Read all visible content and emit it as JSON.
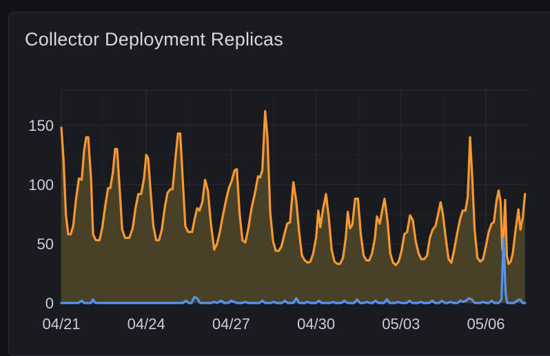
{
  "panel": {
    "title": "Collector Deployment Replicas"
  },
  "colors": {
    "background": "#181b1f",
    "grid": "#2a2d33",
    "orange_series": "#ff9830",
    "orange_fill": "#4a4428",
    "blue_series": "#5794f2"
  },
  "chart_data": {
    "type": "line",
    "title": "Collector Deployment Replicas",
    "xlabel": "",
    "ylabel": "",
    "ylim": [
      0,
      175
    ],
    "yticks": [
      0,
      50,
      100,
      150
    ],
    "x_ticks": [
      {
        "label": "04/21",
        "day": 0
      },
      {
        "label": "04/24",
        "day": 3
      },
      {
        "label": "04/27",
        "day": 6
      },
      {
        "label": "04/30",
        "day": 9
      },
      {
        "label": "05/03",
        "day": 12
      },
      {
        "label": "05/06",
        "day": 15
      }
    ],
    "x_range_days": [
      0,
      15.95
    ],
    "grid": true,
    "legend": "none",
    "series": [
      {
        "color": "#ff9830",
        "fill": true,
        "points": [
          [
            0.0,
            148
          ],
          [
            0.08,
            120
          ],
          [
            0.16,
            75
          ],
          [
            0.24,
            58
          ],
          [
            0.33,
            58
          ],
          [
            0.42,
            65
          ],
          [
            0.52,
            88
          ],
          [
            0.62,
            105
          ],
          [
            0.72,
            104
          ],
          [
            0.8,
            128
          ],
          [
            0.88,
            140
          ],
          [
            0.95,
            140
          ],
          [
            1.05,
            105
          ],
          [
            1.12,
            58
          ],
          [
            1.22,
            53
          ],
          [
            1.35,
            53
          ],
          [
            1.45,
            64
          ],
          [
            1.55,
            82
          ],
          [
            1.65,
            97
          ],
          [
            1.73,
            97
          ],
          [
            1.82,
            110
          ],
          [
            1.9,
            130
          ],
          [
            1.97,
            130
          ],
          [
            2.05,
            100
          ],
          [
            2.15,
            62
          ],
          [
            2.25,
            55
          ],
          [
            2.4,
            55
          ],
          [
            2.52,
            63
          ],
          [
            2.62,
            80
          ],
          [
            2.72,
            92
          ],
          [
            2.82,
            92
          ],
          [
            2.92,
            105
          ],
          [
            3.0,
            125
          ],
          [
            3.07,
            122
          ],
          [
            3.15,
            95
          ],
          [
            3.25,
            65
          ],
          [
            3.35,
            53
          ],
          [
            3.45,
            53
          ],
          [
            3.55,
            62
          ],
          [
            3.65,
            80
          ],
          [
            3.75,
            93
          ],
          [
            3.85,
            96
          ],
          [
            3.93,
            96
          ],
          [
            4.03,
            122
          ],
          [
            4.12,
            143
          ],
          [
            4.2,
            143
          ],
          [
            4.28,
            108
          ],
          [
            4.38,
            65
          ],
          [
            4.48,
            60
          ],
          [
            4.62,
            60
          ],
          [
            4.72,
            72
          ],
          [
            4.8,
            80
          ],
          [
            4.88,
            78
          ],
          [
            4.98,
            85
          ],
          [
            5.08,
            104
          ],
          [
            5.18,
            95
          ],
          [
            5.28,
            68
          ],
          [
            5.4,
            45
          ],
          [
            5.5,
            50
          ],
          [
            5.6,
            60
          ],
          [
            5.7,
            73
          ],
          [
            5.82,
            87
          ],
          [
            5.92,
            97
          ],
          [
            6.02,
            103
          ],
          [
            6.12,
            112
          ],
          [
            6.2,
            113
          ],
          [
            6.3,
            75
          ],
          [
            6.4,
            53
          ],
          [
            6.5,
            51
          ],
          [
            6.6,
            62
          ],
          [
            6.72,
            80
          ],
          [
            6.85,
            94
          ],
          [
            6.95,
            107
          ],
          [
            7.02,
            106
          ],
          [
            7.1,
            112
          ],
          [
            7.2,
            162
          ],
          [
            7.28,
            140
          ],
          [
            7.38,
            76
          ],
          [
            7.48,
            52
          ],
          [
            7.58,
            44
          ],
          [
            7.68,
            44
          ],
          [
            7.78,
            48
          ],
          [
            7.88,
            58
          ],
          [
            7.98,
            67
          ],
          [
            8.08,
            68
          ],
          [
            8.2,
            102
          ],
          [
            8.3,
            86
          ],
          [
            8.4,
            60
          ],
          [
            8.5,
            40
          ],
          [
            8.6,
            36
          ],
          [
            8.7,
            34
          ],
          [
            8.8,
            35
          ],
          [
            8.9,
            42
          ],
          [
            9.0,
            55
          ],
          [
            9.08,
            78
          ],
          [
            9.15,
            64
          ],
          [
            9.25,
            80
          ],
          [
            9.35,
            92
          ],
          [
            9.45,
            72
          ],
          [
            9.55,
            45
          ],
          [
            9.65,
            35
          ],
          [
            9.75,
            33
          ],
          [
            9.85,
            33
          ],
          [
            9.95,
            38
          ],
          [
            10.05,
            55
          ],
          [
            10.12,
            77
          ],
          [
            10.2,
            63
          ],
          [
            10.28,
            66
          ],
          [
            10.38,
            88
          ],
          [
            10.48,
            88
          ],
          [
            10.58,
            58
          ],
          [
            10.68,
            40
          ],
          [
            10.78,
            36
          ],
          [
            10.88,
            36
          ],
          [
            10.98,
            42
          ],
          [
            11.08,
            55
          ],
          [
            11.15,
            73
          ],
          [
            11.25,
            67
          ],
          [
            11.35,
            80
          ],
          [
            11.42,
            88
          ],
          [
            11.52,
            70
          ],
          [
            11.62,
            42
          ],
          [
            11.72,
            34
          ],
          [
            11.82,
            32
          ],
          [
            11.92,
            35
          ],
          [
            12.02,
            44
          ],
          [
            12.12,
            58
          ],
          [
            12.22,
            60
          ],
          [
            12.32,
            74
          ],
          [
            12.42,
            70
          ],
          [
            12.52,
            52
          ],
          [
            12.62,
            42
          ],
          [
            12.72,
            37
          ],
          [
            12.82,
            37
          ],
          [
            12.92,
            40
          ],
          [
            13.02,
            55
          ],
          [
            13.12,
            62
          ],
          [
            13.22,
            65
          ],
          [
            13.32,
            76
          ],
          [
            13.4,
            85
          ],
          [
            13.48,
            75
          ],
          [
            13.58,
            55
          ],
          [
            13.68,
            37
          ],
          [
            13.78,
            34
          ],
          [
            13.88,
            45
          ],
          [
            13.98,
            58
          ],
          [
            14.08,
            70
          ],
          [
            14.18,
            78
          ],
          [
            14.28,
            78
          ],
          [
            14.36,
            90
          ],
          [
            14.44,
            140
          ],
          [
            14.52,
            105
          ],
          [
            14.6,
            62
          ],
          [
            14.7,
            38
          ],
          [
            14.8,
            35
          ],
          [
            14.9,
            37
          ],
          [
            15.0,
            48
          ],
          [
            15.1,
            60
          ],
          [
            15.2,
            67
          ],
          [
            15.28,
            68
          ],
          [
            15.38,
            87
          ],
          [
            15.45,
            95
          ],
          [
            15.52,
            85
          ],
          [
            15.58,
            45
          ],
          [
            15.62,
            55
          ],
          [
            15.68,
            87
          ],
          [
            15.74,
            40
          ],
          [
            15.8,
            33
          ],
          [
            15.88,
            35
          ],
          [
            15.95,
            42
          ],
          [
            16.05,
            62
          ],
          [
            16.15,
            79
          ],
          [
            16.22,
            62
          ],
          [
            16.3,
            72
          ],
          [
            16.38,
            92
          ]
        ]
      },
      {
        "color": "#5794f2",
        "fill": false,
        "points": [
          [
            0.0,
            0
          ],
          [
            0.6,
            0
          ],
          [
            0.72,
            2
          ],
          [
            0.8,
            0
          ],
          [
            1.05,
            0
          ],
          [
            1.12,
            3
          ],
          [
            1.2,
            0
          ],
          [
            4.3,
            0
          ],
          [
            4.4,
            2
          ],
          [
            4.5,
            0
          ],
          [
            4.6,
            0
          ],
          [
            4.7,
            5
          ],
          [
            4.8,
            4
          ],
          [
            4.9,
            0
          ],
          [
            5.3,
            0
          ],
          [
            5.4,
            1
          ],
          [
            5.5,
            0
          ],
          [
            5.65,
            2
          ],
          [
            5.75,
            0
          ],
          [
            5.9,
            0
          ],
          [
            6.0,
            2
          ],
          [
            6.1,
            1
          ],
          [
            6.2,
            0
          ],
          [
            6.4,
            0
          ],
          [
            6.5,
            1
          ],
          [
            6.6,
            0
          ],
          [
            7.0,
            0
          ],
          [
            7.1,
            2
          ],
          [
            7.2,
            0
          ],
          [
            7.4,
            0
          ],
          [
            7.5,
            1
          ],
          [
            7.6,
            0
          ],
          [
            7.8,
            0
          ],
          [
            7.9,
            2
          ],
          [
            8.0,
            0
          ],
          [
            8.2,
            0
          ],
          [
            8.3,
            4
          ],
          [
            8.4,
            0
          ],
          [
            8.6,
            0
          ],
          [
            8.7,
            1
          ],
          [
            8.8,
            0
          ],
          [
            9.0,
            0
          ],
          [
            9.1,
            2
          ],
          [
            9.2,
            0
          ],
          [
            9.5,
            0
          ],
          [
            9.6,
            1
          ],
          [
            9.7,
            0
          ],
          [
            9.9,
            0
          ],
          [
            10.0,
            2
          ],
          [
            10.1,
            0
          ],
          [
            10.35,
            0
          ],
          [
            10.45,
            3
          ],
          [
            10.55,
            0
          ],
          [
            10.7,
            0
          ],
          [
            10.8,
            1
          ],
          [
            10.9,
            0
          ],
          [
            11.0,
            0
          ],
          [
            11.1,
            2
          ],
          [
            11.2,
            0
          ],
          [
            11.4,
            0
          ],
          [
            11.5,
            3
          ],
          [
            11.6,
            0
          ],
          [
            11.8,
            0
          ],
          [
            11.9,
            1
          ],
          [
            12.0,
            0
          ],
          [
            12.2,
            0
          ],
          [
            12.3,
            2
          ],
          [
            12.4,
            0
          ],
          [
            12.6,
            0
          ],
          [
            12.7,
            1
          ],
          [
            12.8,
            0
          ],
          [
            13.0,
            0
          ],
          [
            13.1,
            2
          ],
          [
            13.2,
            0
          ],
          [
            13.35,
            0
          ],
          [
            13.45,
            2
          ],
          [
            13.55,
            0
          ],
          [
            13.65,
            0
          ],
          [
            13.75,
            1
          ],
          [
            13.85,
            0
          ],
          [
            14.0,
            0
          ],
          [
            14.1,
            2
          ],
          [
            14.2,
            1
          ],
          [
            14.3,
            2
          ],
          [
            14.4,
            4
          ],
          [
            14.5,
            3
          ],
          [
            14.6,
            0
          ],
          [
            14.8,
            0
          ],
          [
            14.9,
            1
          ],
          [
            15.0,
            0
          ],
          [
            15.1,
            0
          ],
          [
            15.2,
            2
          ],
          [
            15.3,
            0
          ],
          [
            15.45,
            0
          ],
          [
            15.55,
            3
          ],
          [
            15.62,
            55
          ],
          [
            15.7,
            8
          ],
          [
            15.75,
            0
          ],
          [
            16.0,
            0
          ],
          [
            16.1,
            2
          ],
          [
            16.2,
            3
          ],
          [
            16.3,
            0
          ],
          [
            16.38,
            0
          ]
        ]
      }
    ]
  }
}
